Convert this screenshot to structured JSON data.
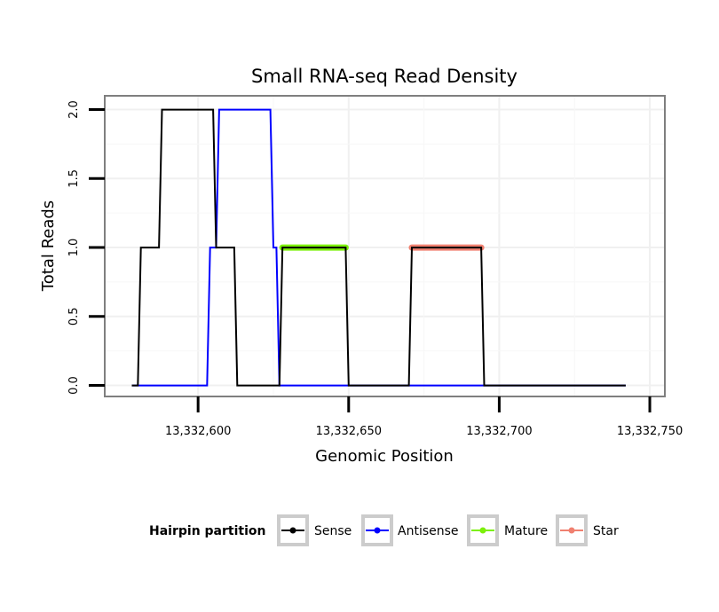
{
  "chart_data": {
    "type": "line",
    "title": "Small RNA-seq Read Density",
    "xlabel": "Genomic Position",
    "ylabel": "Total Reads",
    "xlim": [
      13332569,
      13332755
    ],
    "ylim": [
      -0.08,
      2.1
    ],
    "x_ticks": [
      13332600,
      13332650,
      13332700,
      13332750
    ],
    "x_tick_labels": [
      "13,332,600",
      "13,332,650",
      "13,332,700",
      "13,332,750"
    ],
    "y_ticks": [
      0,
      0.5,
      1,
      1.5,
      2
    ],
    "y_tick_labels": [
      "0.0",
      "0.5",
      "1.0",
      "1.5",
      "2.0"
    ],
    "grid": true,
    "legend": {
      "title": "Hairpin partition",
      "position": "bottom",
      "entries": [
        {
          "name": "Sense",
          "color": "#000000"
        },
        {
          "name": "Antisense",
          "color": "#0000ff"
        },
        {
          "name": "Mature",
          "color": "#7cf00a"
        },
        {
          "name": "Star",
          "color": "#f08070"
        }
      ]
    },
    "series": [
      {
        "name": "Sense",
        "color": "#000000",
        "x": [
          13332578,
          13332580,
          13332581,
          13332587,
          13332588,
          13332605,
          13332606,
          13332612,
          13332613,
          13332627,
          13332628,
          13332649,
          13332650,
          13332670,
          13332671,
          13332694,
          13332695,
          13332742
        ],
        "y": [
          0,
          0,
          1,
          1,
          2,
          2,
          1,
          1,
          0,
          0,
          1,
          1,
          0,
          0,
          1,
          1,
          0,
          0
        ]
      },
      {
        "name": "Antisense",
        "color": "#0000ff",
        "x": [
          13332578,
          13332603,
          13332604,
          13332606,
          13332607,
          13332624,
          13332625,
          13332626,
          13332627,
          13332742
        ],
        "y": [
          0,
          0,
          1,
          1,
          2,
          2,
          1,
          1,
          0,
          0
        ]
      },
      {
        "name": "Mature",
        "color": "#7cf00a",
        "x": [
          13332628,
          13332649
        ],
        "y": [
          1,
          1
        ]
      },
      {
        "name": "Star",
        "color": "#f08070",
        "x": [
          13332671,
          13332694
        ],
        "y": [
          1,
          1
        ]
      }
    ]
  }
}
